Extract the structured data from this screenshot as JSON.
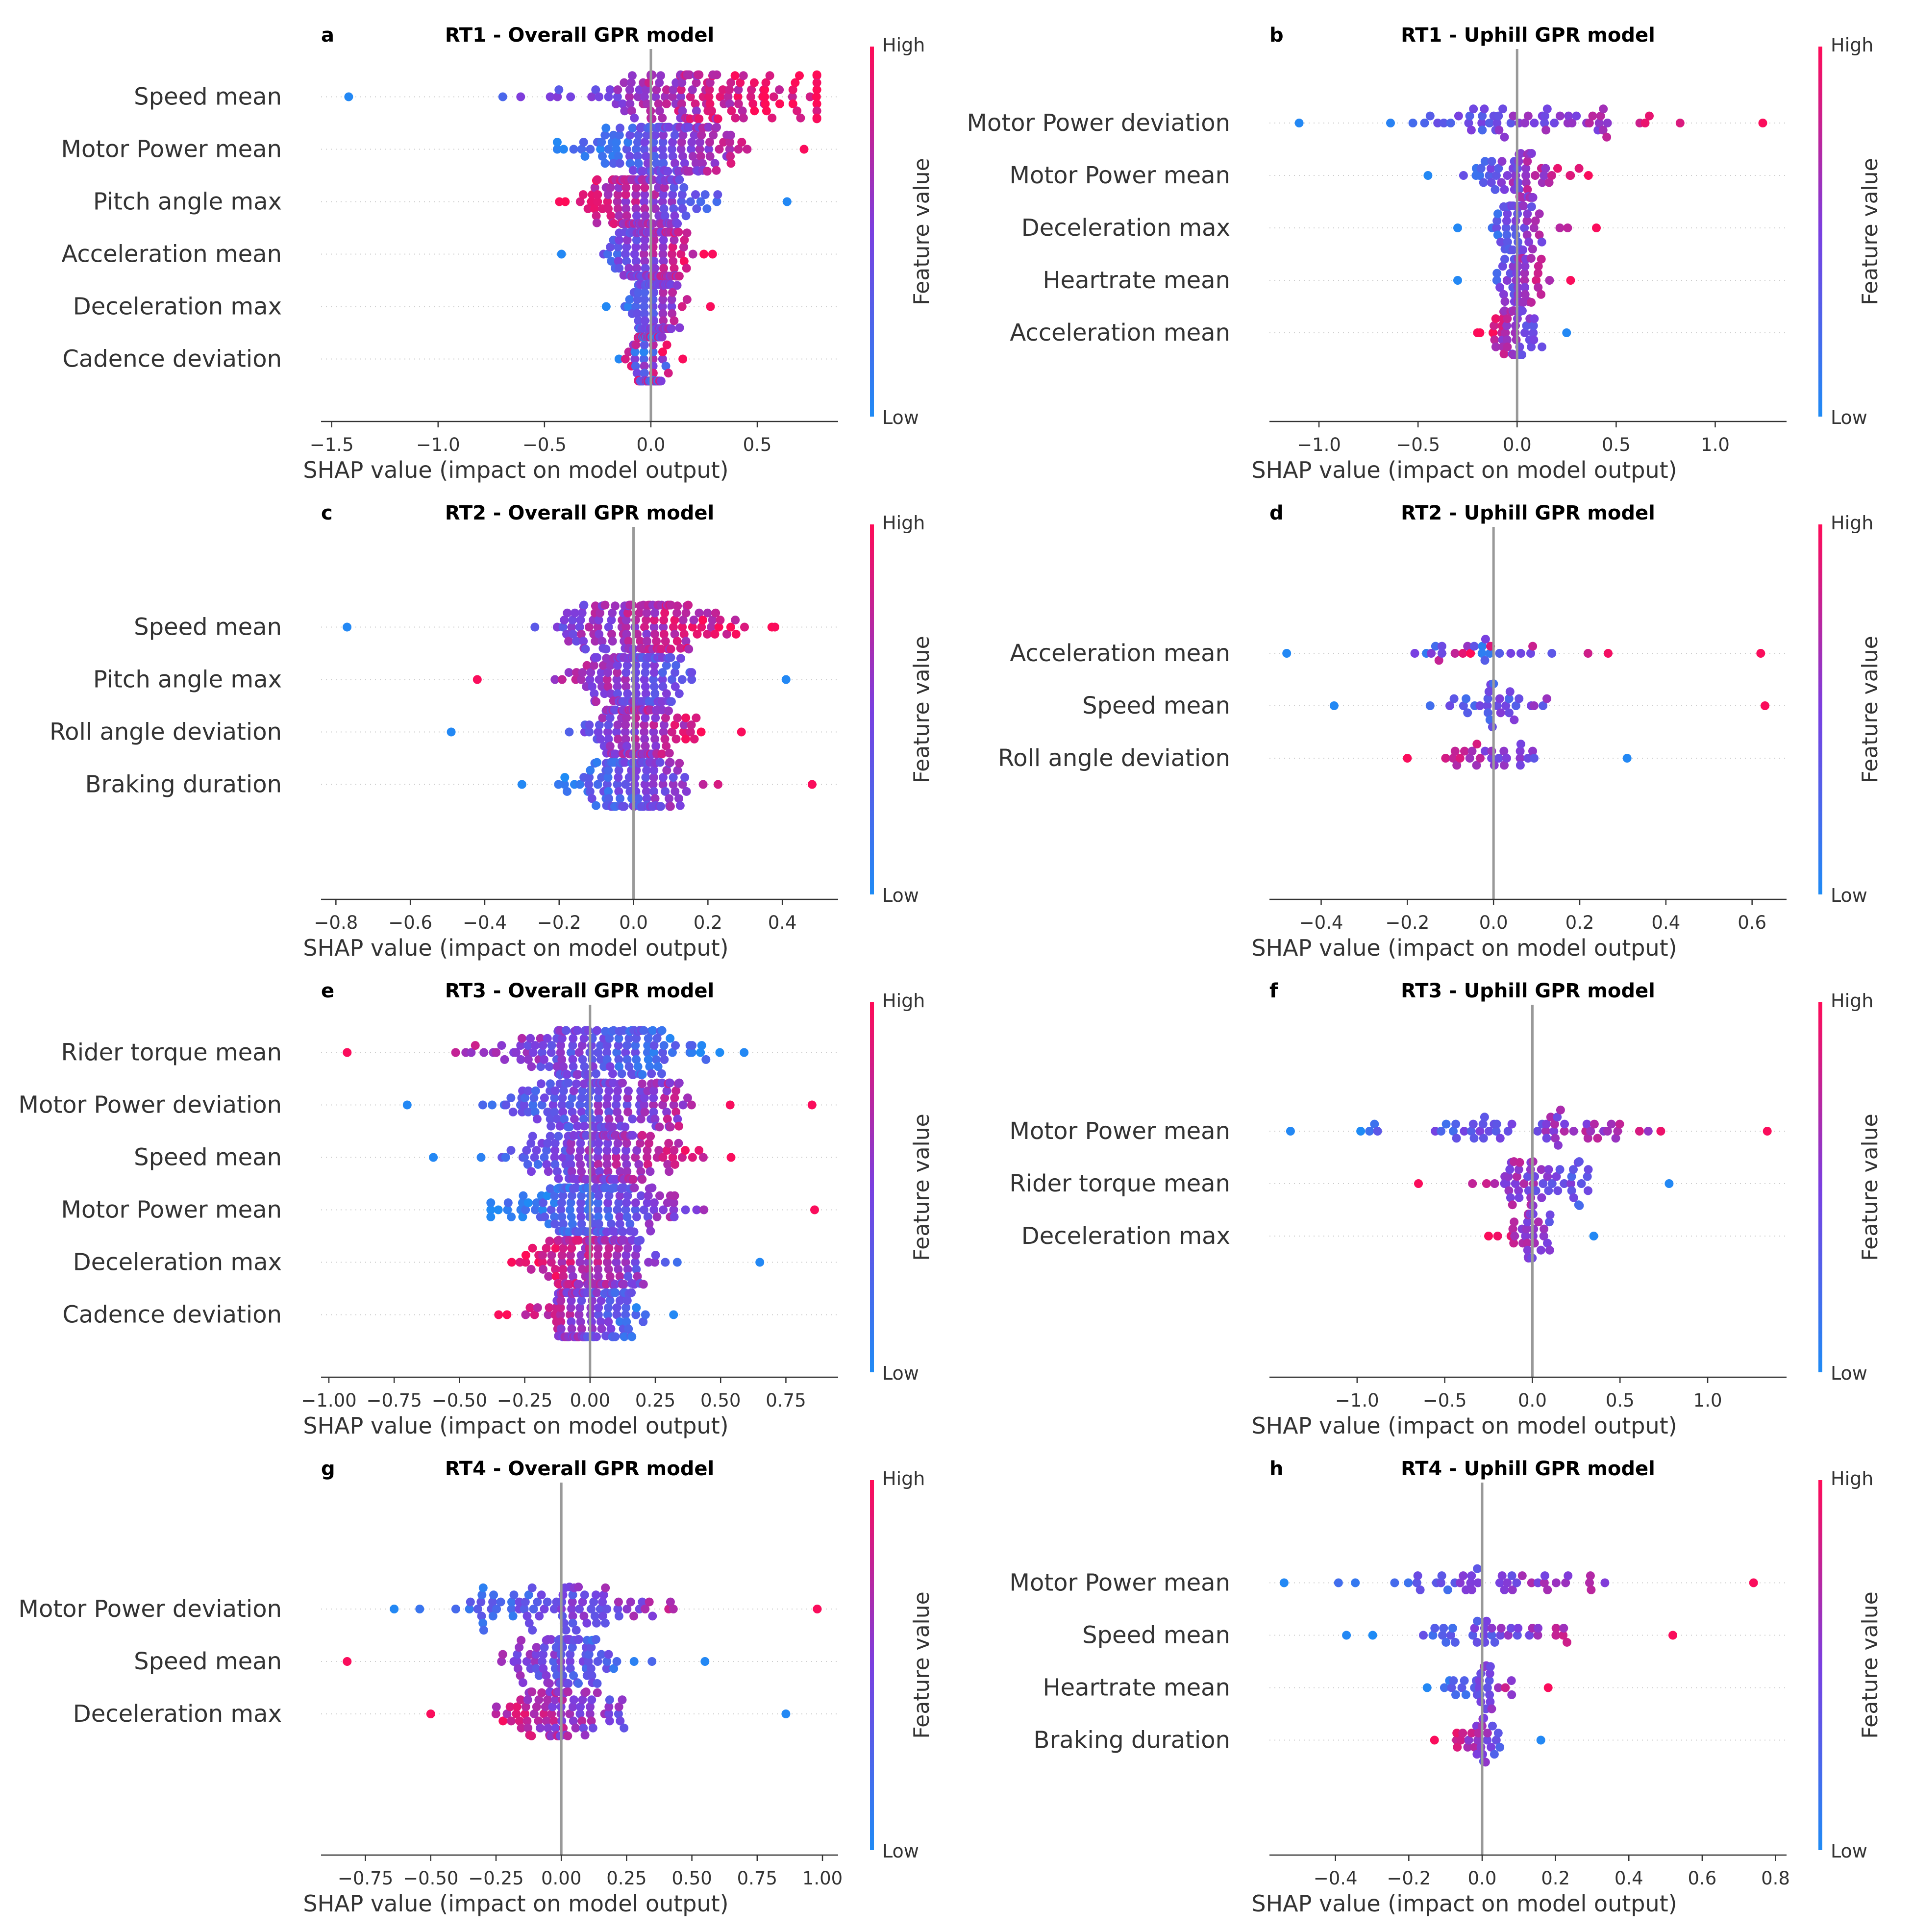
{
  "colors": {
    "low": "#1f8bf5",
    "high": "#ff0b57",
    "mid": "#7a3fe0",
    "zero_line": "#999999"
  },
  "chart_data": [
    {
      "type": "scatter",
      "letter": "a",
      "title": "RT1 - Overall GPR model",
      "xlabel": "SHAP value (impact on model output)",
      "xlim": [
        -1.55,
        0.88
      ],
      "xticks": [
        -1.5,
        -1.0,
        -0.5,
        0.0,
        0.5
      ],
      "xtick_labels": [
        "−1.5",
        "−1.0",
        "−0.5",
        "0.0",
        "0.5"
      ],
      "colorbar": {
        "title": "Feature value",
        "high": "High",
        "low": "Low"
      },
      "features": [
        {
          "name": "Speed mean",
          "n": 150,
          "center": 0.2,
          "spread": 0.5,
          "min": -1.42,
          "max": 0.78,
          "trend": 1
        },
        {
          "name": "Motor Power mean",
          "n": 150,
          "center": 0.05,
          "spread": 0.3,
          "min": -0.44,
          "max": 0.72,
          "trend": 1
        },
        {
          "name": "Pitch angle max",
          "n": 150,
          "center": -0.05,
          "spread": 0.22,
          "min": -0.43,
          "max": 0.64,
          "trend": -1
        },
        {
          "name": "Acceleration mean",
          "n": 140,
          "center": 0.0,
          "spread": 0.15,
          "min": -0.42,
          "max": 0.29,
          "trend": 1
        },
        {
          "name": "Deceleration max",
          "n": 110,
          "center": 0.02,
          "spread": 0.1,
          "min": -0.21,
          "max": 0.28,
          "trend": 1
        },
        {
          "name": "Cadence deviation",
          "n": 110,
          "center": 0.0,
          "spread": 0.06,
          "min": -0.15,
          "max": 0.15,
          "trend": 0
        }
      ]
    },
    {
      "type": "scatter",
      "letter": "b",
      "title": "RT1 - Uphill GPR model",
      "xlabel": "SHAP value (impact on model output)",
      "xlim": [
        -1.25,
        1.36
      ],
      "xticks": [
        -1.0,
        -0.5,
        0.0,
        0.5,
        1.0
      ],
      "xtick_labels": [
        "−1.0",
        "−0.5",
        "0.0",
        "0.5",
        "1.0"
      ],
      "colorbar": {
        "title": "Feature value",
        "high": "High",
        "low": "Low"
      },
      "features": [
        {
          "name": "Motor Power deviation",
          "n": 55,
          "center": 0.05,
          "spread": 0.55,
          "min": -1.1,
          "max": 1.24,
          "trend": 1
        },
        {
          "name": "Motor Power mean",
          "n": 55,
          "center": 0.02,
          "spread": 0.2,
          "min": -0.45,
          "max": 0.36,
          "trend": 1
        },
        {
          "name": "Deceleration max",
          "n": 50,
          "center": 0.02,
          "spread": 0.12,
          "min": -0.3,
          "max": 0.4,
          "trend": 1
        },
        {
          "name": "Heartrate mean",
          "n": 45,
          "center": 0.0,
          "spread": 0.1,
          "min": -0.3,
          "max": 0.27,
          "trend": 1
        },
        {
          "name": "Acceleration mean",
          "n": 50,
          "center": -0.02,
          "spread": 0.09,
          "min": -0.2,
          "max": 0.25,
          "trend": -1
        }
      ]
    },
    {
      "type": "scatter",
      "letter": "c",
      "title": "RT2 - Overall GPR model",
      "xlabel": "SHAP value (impact on model output)",
      "xlim": [
        -0.84,
        0.55
      ],
      "xticks": [
        -0.8,
        -0.6,
        -0.4,
        -0.2,
        0.0,
        0.2,
        0.4
      ],
      "xtick_labels": [
        "−0.8",
        "−0.6",
        "−0.4",
        "−0.2",
        "0.0",
        "0.2",
        "0.4"
      ],
      "colorbar": {
        "title": "Feature value",
        "high": "High",
        "low": "Low"
      },
      "features": [
        {
          "name": "Speed mean",
          "n": 150,
          "center": 0.03,
          "spread": 0.2,
          "min": -0.77,
          "max": 0.38,
          "trend": 1
        },
        {
          "name": "Pitch angle max",
          "n": 150,
          "center": 0.0,
          "spread": 0.15,
          "min": -0.42,
          "max": 0.41,
          "trend": -1
        },
        {
          "name": "Roll angle deviation",
          "n": 140,
          "center": 0.02,
          "spread": 0.12,
          "min": -0.49,
          "max": 0.29,
          "trend": 1
        },
        {
          "name": "Braking duration",
          "n": 130,
          "center": 0.0,
          "spread": 0.13,
          "min": -0.3,
          "max": 0.48,
          "trend": 1
        }
      ]
    },
    {
      "type": "scatter",
      "letter": "d",
      "title": "RT2 - Uphill GPR model",
      "xlabel": "SHAP value (impact on model output)",
      "xlim": [
        -0.52,
        0.68
      ],
      "xticks": [
        -0.4,
        -0.2,
        0.0,
        0.2,
        0.4,
        0.6
      ],
      "xtick_labels": [
        "−0.4",
        "−0.2",
        "0.0",
        "0.2",
        "0.4",
        "0.6"
      ],
      "colorbar": {
        "title": "Feature value",
        "high": "High",
        "low": "Low"
      },
      "features": [
        {
          "name": "Acceleration mean",
          "n": 26,
          "center": 0.0,
          "spread": 0.18,
          "min": -0.48,
          "max": 0.62,
          "trend": 0
        },
        {
          "name": "Speed mean",
          "n": 30,
          "center": 0.0,
          "spread": 0.12,
          "min": -0.37,
          "max": 0.63,
          "trend": 1
        },
        {
          "name": "Roll angle deviation",
          "n": 26,
          "center": 0.0,
          "spread": 0.09,
          "min": -0.2,
          "max": 0.31,
          "trend": -1
        }
      ]
    },
    {
      "type": "scatter",
      "letter": "e",
      "title": "RT3 - Overall GPR model",
      "xlabel": "SHAP value (impact on model output)",
      "xlim": [
        -1.03,
        0.95
      ],
      "xticks": [
        -1.0,
        -0.75,
        -0.5,
        -0.25,
        0.0,
        0.25,
        0.5,
        0.75
      ],
      "xtick_labels": [
        "−1.00",
        "−0.75",
        "−0.50",
        "−0.25",
        "0.00",
        "0.25",
        "0.50",
        "0.75"
      ],
      "colorbar": {
        "title": "Feature value",
        "high": "High",
        "low": "Low"
      },
      "features": [
        {
          "name": "Rider torque mean",
          "n": 160,
          "center": 0.05,
          "spread": 0.3,
          "min": -0.93,
          "max": 0.59,
          "trend": -1
        },
        {
          "name": "Motor Power deviation",
          "n": 160,
          "center": 0.05,
          "spread": 0.3,
          "min": -0.7,
          "max": 0.85,
          "trend": 1
        },
        {
          "name": "Speed mean",
          "n": 160,
          "center": 0.05,
          "spread": 0.25,
          "min": -0.6,
          "max": 0.54,
          "trend": 1
        },
        {
          "name": "Motor Power mean",
          "n": 150,
          "center": 0.0,
          "spread": 0.3,
          "min": -0.38,
          "max": 0.86,
          "trend": 1
        },
        {
          "name": "Deceleration max",
          "n": 140,
          "center": 0.0,
          "spread": 0.2,
          "min": -0.3,
          "max": 0.65,
          "trend": -1
        },
        {
          "name": "Cadence deviation",
          "n": 140,
          "center": 0.0,
          "spread": 0.16,
          "min": -0.35,
          "max": 0.32,
          "trend": -1
        }
      ]
    },
    {
      "type": "scatter",
      "letter": "f",
      "title": "RT3 - Uphill GPR model",
      "xlabel": "SHAP value (impact on model output)",
      "xlim": [
        -1.5,
        1.45
      ],
      "xticks": [
        -1.0,
        -0.5,
        0.0,
        0.5,
        1.0
      ],
      "xtick_labels": [
        "−1.0",
        "−0.5",
        "0.0",
        "0.5",
        "1.0"
      ],
      "colorbar": {
        "title": "Feature value",
        "high": "High",
        "low": "Low"
      },
      "features": [
        {
          "name": "Motor Power mean",
          "n": 55,
          "center": 0.1,
          "spread": 0.7,
          "min": -1.38,
          "max": 1.34,
          "trend": 1
        },
        {
          "name": "Rider torque mean",
          "n": 55,
          "center": 0.05,
          "spread": 0.28,
          "min": -0.65,
          "max": 0.78,
          "trend": -1
        },
        {
          "name": "Deceleration max",
          "n": 35,
          "center": 0.0,
          "spread": 0.1,
          "min": -0.25,
          "max": 0.35,
          "trend": -1
        }
      ]
    },
    {
      "type": "scatter",
      "letter": "g",
      "title": "RT4 - Overall GPR model",
      "xlabel": "SHAP value (impact on model output)",
      "xlim": [
        -0.92,
        1.06
      ],
      "xticks": [
        -0.75,
        -0.5,
        -0.25,
        0.0,
        0.25,
        0.5,
        0.75,
        1.0
      ],
      "xtick_labels": [
        "−0.75",
        "−0.50",
        "−0.25",
        "0.00",
        "0.25",
        "0.50",
        "0.75",
        "1.00"
      ],
      "colorbar": {
        "title": "Feature value",
        "high": "High",
        "low": "Low"
      },
      "features": [
        {
          "name": "Motor Power deviation",
          "n": 85,
          "center": 0.05,
          "spread": 0.35,
          "min": -0.64,
          "max": 0.98,
          "trend": 1
        },
        {
          "name": "Speed mean",
          "n": 85,
          "center": 0.0,
          "spread": 0.2,
          "min": -0.82,
          "max": 0.55,
          "trend": -1
        },
        {
          "name": "Deceleration max",
          "n": 90,
          "center": 0.0,
          "spread": 0.2,
          "min": -0.5,
          "max": 0.86,
          "trend": -1
        }
      ]
    },
    {
      "type": "scatter",
      "letter": "h",
      "title": "RT4 - Uphill GPR model",
      "xlabel": "SHAP value (impact on model output)",
      "xlim": [
        -0.58,
        0.83
      ],
      "xticks": [
        -0.4,
        -0.2,
        0.0,
        0.2,
        0.4,
        0.6,
        0.8
      ],
      "xtick_labels": [
        "−0.4",
        "−0.2",
        "0.0",
        "0.2",
        "0.4",
        "0.6",
        "0.8"
      ],
      "colorbar": {
        "title": "Feature value",
        "high": "High",
        "low": "Low"
      },
      "features": [
        {
          "name": "Motor Power mean",
          "n": 40,
          "center": 0.05,
          "spread": 0.3,
          "min": -0.54,
          "max": 0.74,
          "trend": 1
        },
        {
          "name": "Speed mean",
          "n": 36,
          "center": 0.0,
          "spread": 0.2,
          "min": -0.37,
          "max": 0.52,
          "trend": 1
        },
        {
          "name": "Heartrate mean",
          "n": 30,
          "center": 0.0,
          "spread": 0.08,
          "min": -0.15,
          "max": 0.18,
          "trend": 1
        },
        {
          "name": "Braking duration",
          "n": 28,
          "center": 0.0,
          "spread": 0.07,
          "min": -0.13,
          "max": 0.16,
          "trend": -1
        }
      ]
    }
  ]
}
